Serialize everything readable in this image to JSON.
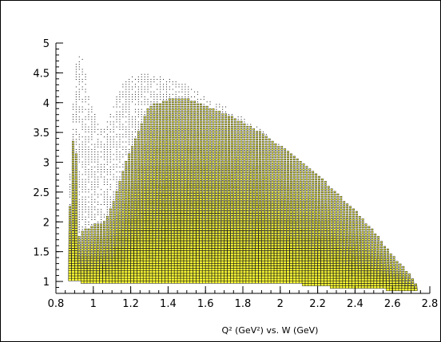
{
  "chart_data": {
    "type": "heatmap",
    "title": "",
    "xlabel": "Q² (GeV²) vs. W (GeV)",
    "ylabel": "",
    "xlim": [
      0.8,
      2.8
    ],
    "ylim": [
      0.8,
      5.0
    ],
    "x_ticks": [
      0.8,
      1,
      1.2,
      1.4,
      1.6,
      1.8,
      2,
      2.2,
      2.4,
      2.6,
      2.8
    ],
    "x_tick_labels": [
      "0.8",
      "1",
      "1.2",
      "1.4",
      "1.6",
      "1.8",
      "2",
      "2.2",
      "2.4",
      "2.6",
      "2.8"
    ],
    "y_ticks": [
      1,
      1.5,
      2,
      2.5,
      3,
      3.5,
      4,
      4.5,
      5
    ],
    "y_tick_labels": [
      "1",
      "1.5",
      "2",
      "2.5",
      "3",
      "3.5",
      "4",
      "4.5",
      "5"
    ],
    "grid": false,
    "legend": "none",
    "colors": {
      "box_fill": "#ffff33",
      "box_edge": "#1a1a1a",
      "axis": "#000000"
    },
    "bins": {
      "x_min": 0.8,
      "x_max": 2.8,
      "nx": 120,
      "y_min": 0.8,
      "y_max": 5.0,
      "ny": 100
    },
    "envelope": {
      "w": [
        0.86,
        0.88,
        0.9,
        0.92,
        0.95,
        0.98,
        1.0,
        1.05,
        1.1,
        1.15,
        1.2,
        1.25,
        1.3,
        1.4,
        1.5,
        1.6,
        1.7,
        1.8,
        1.9,
        2.0,
        2.1,
        2.2,
        2.3,
        2.4,
        2.5,
        2.6,
        2.7,
        2.74
      ],
      "q2max": [
        1.6,
        3.2,
        4.6,
        4.8,
        4.7,
        4.0,
        3.9,
        3.5,
        3.9,
        4.3,
        4.45,
        4.5,
        4.48,
        4.4,
        4.3,
        4.1,
        3.95,
        3.75,
        3.55,
        3.3,
        3.05,
        2.8,
        2.5,
        2.2,
        1.85,
        1.45,
        1.1,
        0.9
      ],
      "q2min": [
        1.05,
        1.0,
        1.0,
        1.0,
        0.97,
        0.95,
        0.95,
        0.95,
        0.95,
        0.95,
        0.95,
        0.95,
        0.95,
        0.95,
        0.95,
        0.95,
        0.95,
        0.95,
        0.95,
        0.95,
        0.95,
        0.92,
        0.9,
        0.88,
        0.87,
        0.86,
        0.85,
        0.85
      ]
    },
    "dense_fraction_of_max": [
      0.7,
      0.7,
      0.85,
      0.2,
      0.25,
      0.3,
      0.35,
      0.4,
      0.45,
      0.55,
      0.65,
      0.75,
      0.85,
      0.9,
      0.93,
      0.95,
      0.96,
      0.97,
      0.98,
      0.99,
      1.0,
      1.0,
      1.0,
      1.0,
      1.0,
      1.0,
      1.0,
      1.0
    ]
  }
}
